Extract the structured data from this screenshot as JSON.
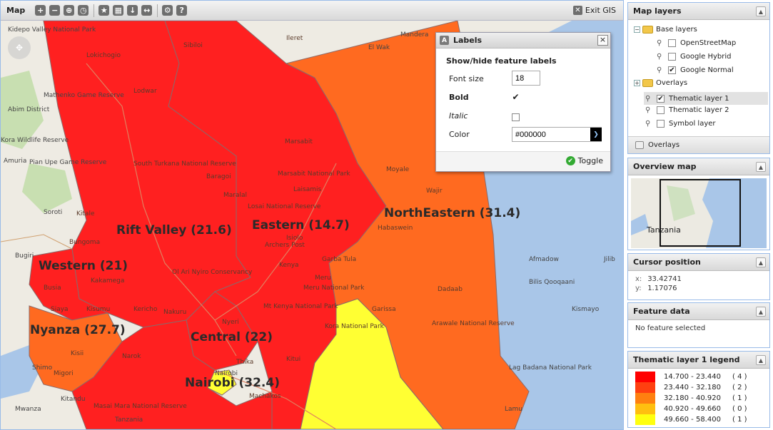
{
  "map": {
    "title": "Map",
    "toolbar": {
      "zoom_in": "+",
      "zoom_out": "−",
      "zoom_extent": "⊕",
      "history": "◷",
      "favorites": "★",
      "grid": "▦",
      "download": "↓",
      "measure": "↔",
      "settings": "⚙",
      "help": "?"
    },
    "exit_label": "Exit GIS"
  },
  "regions": [
    {
      "label": "Rift Valley (21.6)",
      "color": "#ff2020"
    },
    {
      "label": "Eastern (14.7)",
      "color": "#ff2020"
    },
    {
      "label": "NorthEastern (31.4)",
      "color": "#ff6a20"
    },
    {
      "label": "Western (21)",
      "color": "#ff2020"
    },
    {
      "label": "Nyanza (27.7)",
      "color": "#ff6a20"
    },
    {
      "label": "Central (22)",
      "color": "#ff2020"
    },
    {
      "label": "Nairobi (32.4)",
      "color": "#ffff33"
    }
  ],
  "places": [
    "Kidepo Valley National Park",
    "Lokichogio",
    "Lodwar",
    "Ileret",
    "Sibiloi",
    "El Wak",
    "Mandera",
    "Mathenko Game Reserve",
    "Abim District",
    "Pian Upe Game Reserve",
    "Kora Wildlife Reserve",
    "Amuria",
    "Soroti",
    "Kitale",
    "Bugiri",
    "Kisumu",
    "Bungoma",
    "Kakamega",
    "Siaya",
    "Kericho",
    "Busia",
    "Kisii",
    "Migori",
    "Narok",
    "Nakuru",
    "Nyeri",
    "Meru",
    "Isiolo",
    "Marsabit",
    "Marsabit National Park",
    "Laisamis",
    "Moyale",
    "Wajir",
    "Garissa",
    "Habaswein",
    "Dadaab",
    "Arawale National Reserve",
    "Lamu",
    "Kitui",
    "Machakos",
    "Thika",
    "Nairobi",
    "Mwanza",
    "Tanzania",
    "Afmadow",
    "Jilib",
    "Bilis Qooqaani",
    "Kismayo",
    "Lag Badana National Park",
    "Masai Mara National Reserve",
    "Kitandu",
    "South Turkana National Reserve",
    "Losai National Reserve",
    "Ol Ari Nyiro Conservancy",
    "Kenya",
    "Mt Kenya National Park",
    "Meru National Park",
    "Kora National Park",
    "Baragoi",
    "Maralal",
    "Archers Post",
    "Garba Tula",
    "Shimo"
  ],
  "labels_dialog": {
    "title": "Labels",
    "subtitle": "Show/hide feature labels",
    "font_size_label": "Font size",
    "font_size_value": "18",
    "bold_label": "Bold",
    "bold_checked": "✔",
    "italic_label": "Italic",
    "color_label": "Color",
    "color_value": "#000000",
    "toggle_label": "Toggle",
    "close": "×",
    "icon": "A"
  },
  "layers_panel": {
    "title": "Map layers",
    "base_layers": "Base layers",
    "items": [
      {
        "label": "OpenStreetMap",
        "checked": ""
      },
      {
        "label": "Google Hybrid",
        "checked": ""
      },
      {
        "label": "Google Normal",
        "checked": "✔"
      }
    ],
    "overlays": "Overlays",
    "overlay_items": [
      {
        "label": "Thematic layer 1",
        "checked": "✔"
      },
      {
        "label": "Thematic layer 2",
        "checked": ""
      },
      {
        "label": "Symbol layer",
        "checked": ""
      }
    ],
    "overlays_button": "Overlays"
  },
  "overview_panel": {
    "title": "Overview map",
    "country_label": "Tanzania"
  },
  "cursor_panel": {
    "title": "Cursor position",
    "x_key": "x:",
    "x_value": "33.42741",
    "y_key": "y:",
    "y_value": "1.17076"
  },
  "feature_panel": {
    "title": "Feature data",
    "status": "No feature selected"
  },
  "legend_panel": {
    "title": "Thematic layer 1 legend",
    "entries": [
      {
        "range": "14.700 - 23.440",
        "count": "( 4 )",
        "color": "#ff0000"
      },
      {
        "range": "23.440 - 32.180",
        "count": "( 2 )",
        "color": "#ff4010"
      },
      {
        "range": "32.180 - 40.920",
        "count": "( 1 )",
        "color": "#ff8010"
      },
      {
        "range": "40.920 - 49.660",
        "count": "( 0 )",
        "color": "#ffbf10"
      },
      {
        "range": "49.660 - 58.400",
        "count": "( 1 )",
        "color": "#ffff10"
      }
    ]
  }
}
